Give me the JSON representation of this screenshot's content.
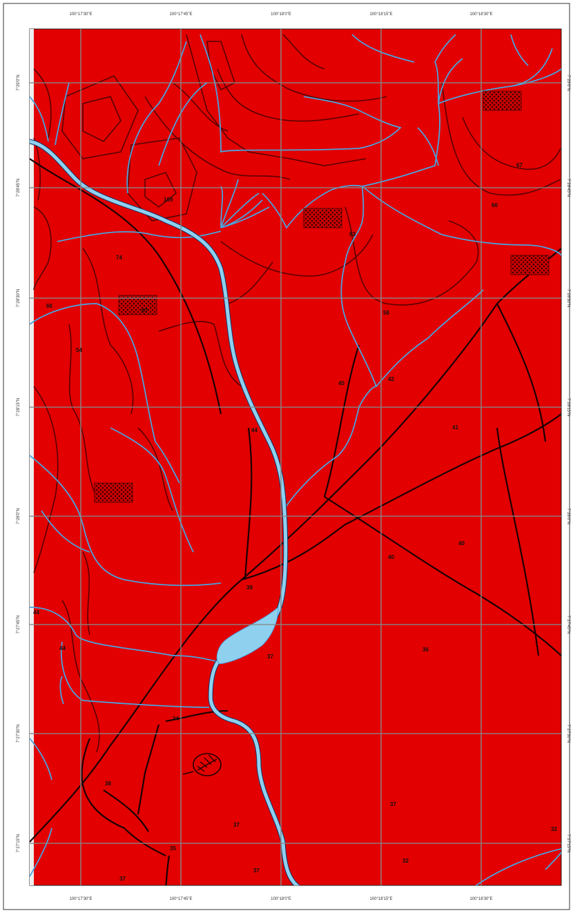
{
  "map": {
    "colors": {
      "land": "#e20000",
      "contour": "#5a0000",
      "road": "#1c0000",
      "water": "#4aa3df",
      "lake": "#8fd0ef",
      "grid": "#888888",
      "frame": "#333333"
    },
    "top_coords": [
      "100°17'30\"E",
      "100°17'45\"E",
      "100°18'0\"E",
      "100°18'15\"E",
      "100°18'30\"E"
    ],
    "bottom_coords": [
      "100°17'30\"E",
      "100°17'45\"E",
      "100°18'0\"E",
      "100°18'15\"E",
      "100°18'30\"E"
    ],
    "left_coords": [
      "7°29'0\"N",
      "7°28'45\"N",
      "7°28'30\"N",
      "7°28'15\"N",
      "7°28'0\"N",
      "7°27'45\"N",
      "7°27'30\"N",
      "7°27'15\"N"
    ],
    "right_coords": [
      "7°29'0\"N",
      "7°28'45\"N",
      "7°28'30\"N",
      "7°28'15\"N",
      "7°28'0\"N",
      "7°27'45\"N",
      "7°27'30\"N",
      "7°27'15\"N"
    ],
    "elevations": [
      {
        "label": "67"
      },
      {
        "label": "66"
      },
      {
        "label": "109"
      },
      {
        "label": "63"
      },
      {
        "label": "74"
      },
      {
        "label": "66"
      },
      {
        "label": "67"
      },
      {
        "label": "58"
      },
      {
        "label": "54"
      },
      {
        "label": "45"
      },
      {
        "label": "42"
      },
      {
        "label": "44"
      },
      {
        "label": "41"
      },
      {
        "label": "40"
      },
      {
        "label": "40"
      },
      {
        "label": "39"
      },
      {
        "label": "44"
      },
      {
        "label": "44"
      },
      {
        "label": "36"
      },
      {
        "label": "37"
      },
      {
        "label": "34"
      },
      {
        "label": "38"
      },
      {
        "label": "37"
      },
      {
        "label": "37"
      },
      {
        "label": "35"
      },
      {
        "label": "37"
      },
      {
        "label": "37"
      },
      {
        "label": "32"
      },
      {
        "label": "32"
      }
    ]
  }
}
